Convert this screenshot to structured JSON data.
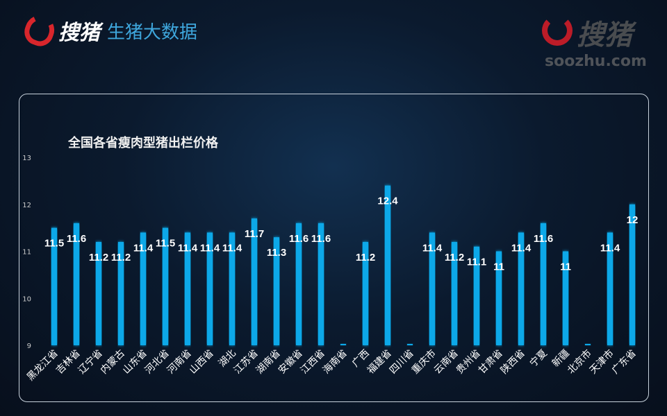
{
  "header": {
    "brand": "搜猪",
    "subtitle": "生猪大数据"
  },
  "watermark": {
    "brand": "搜猪",
    "url": "soozhu.com"
  },
  "colors": {
    "bar": "#0fa8e8",
    "label": "#ffffff",
    "axis": "#cccccc"
  },
  "chart_data": {
    "type": "bar",
    "title": "全国各省瘦肉型猪出栏价格",
    "xlabel": "",
    "ylabel": "",
    "ylim": [
      9,
      13
    ],
    "yticks": [
      9,
      10,
      11,
      12,
      13
    ],
    "grid": false,
    "categories": [
      "黑龙江省",
      "吉林省",
      "辽宁省",
      "内蒙古",
      "山东省",
      "河北省",
      "河南省",
      "山西省",
      "湖北",
      "江苏省",
      "湖南省",
      "安徽省",
      "江西省",
      "海南省",
      "广西",
      "福建省",
      "四川省",
      "重庆市",
      "云南省",
      "贵州省",
      "甘肃省",
      "陕西省",
      "宁夏",
      "新疆",
      "北京市",
      "天津市",
      "广东省"
    ],
    "values": [
      11.5,
      11.6,
      11.2,
      11.2,
      11.4,
      11.5,
      11.4,
      11.4,
      11.4,
      11.7,
      11.3,
      11.6,
      11.6,
      null,
      11.2,
      12.4,
      null,
      11.4,
      11.2,
      11.1,
      11,
      11.4,
      11.6,
      11,
      null,
      11.4,
      12
    ]
  }
}
